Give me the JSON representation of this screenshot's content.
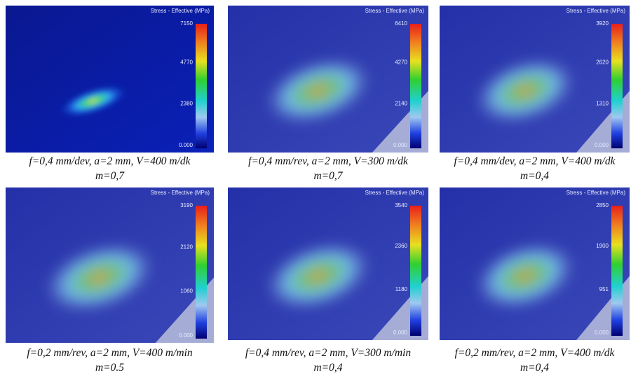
{
  "panels": [
    {
      "title": "Stress - Effective (MPa)",
      "scale": [
        "7150",
        "4770",
        "2380",
        "0.000"
      ],
      "caption": [
        "f=0,4 mm/dev, a=2 mm, V=400 m/dk",
        "m=0,7"
      ]
    },
    {
      "title": "Stress - Effective (MPa)",
      "scale": [
        "6410",
        "4270",
        "2140",
        "0.000"
      ],
      "caption": [
        "f=0,4 mm/rev, a=2 mm, V=300 m/dk",
        "m=0,7"
      ]
    },
    {
      "title": "Stress - Effective (MPa)",
      "scale": [
        "3920",
        "2620",
        "1310",
        "0.000"
      ],
      "caption": [
        "f=0,4 mm/dev, a=2 mm, V=400 m/dk",
        "m=0,4"
      ]
    },
    {
      "title": "Stress - Effective (MPa)",
      "scale": [
        "3190",
        "2120",
        "1060",
        "0.000"
      ],
      "caption": [
        "f=0,2 mm/rev, a=2 mm, V=400 m/min",
        "m=0.5"
      ]
    },
    {
      "title": "Stress - Effective (MPa)",
      "scale": [
        "3540",
        "2360",
        "1180",
        "0.000"
      ],
      "caption": [
        "f=0,4 mm/rev, a=2 mm, V=300 m/min",
        "m=0,4"
      ]
    },
    {
      "title": "Stress - Effective (MPa)",
      "scale": [
        "2850",
        "1900",
        "951",
        "0.000"
      ],
      "caption": [
        "f=0,2 mm/rev, a=2 mm, V=400 m/dk",
        "m=0,4"
      ]
    }
  ]
}
